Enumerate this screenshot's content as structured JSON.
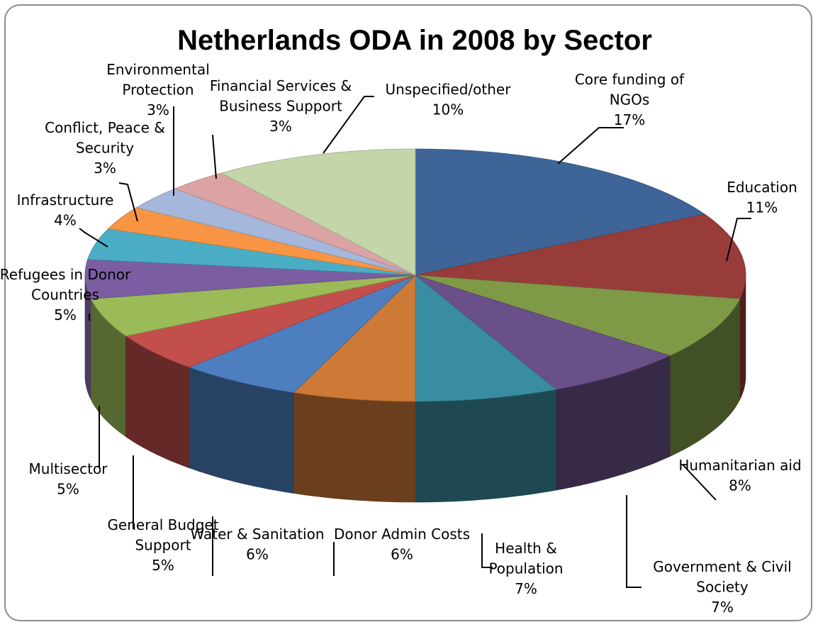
{
  "chart_data": {
    "type": "pie",
    "style": "3d-exploded-none",
    "title": "Netherlands ODA in 2008 by Sector",
    "legend": "none",
    "unit": "%",
    "slices": [
      {
        "label_lines": [
          "Core funding of",
          "NGOs"
        ],
        "value": 17,
        "value_text": "17%",
        "color": "#3f6598"
      },
      {
        "label_lines": [
          "Education"
        ],
        "value": 11,
        "value_text": "11%",
        "color": "#983c3a"
      },
      {
        "label_lines": [
          "Humanitarian aid"
        ],
        "value": 8,
        "value_text": "8%",
        "color": "#7f9a47"
      },
      {
        "label_lines": [
          "Government & Civil",
          "Society"
        ],
        "value": 7,
        "value_text": "7%",
        "color": "#6a5088"
      },
      {
        "label_lines": [
          "Health &",
          "Population"
        ],
        "value": 7,
        "value_text": "7%",
        "color": "#3a8da0"
      },
      {
        "label_lines": [
          "Donor Admin Costs"
        ],
        "value": 6,
        "value_text": "6%",
        "color": "#cd7a37"
      },
      {
        "label_lines": [
          "Water & Sanitation"
        ],
        "value": 6,
        "value_text": "6%",
        "color": "#4c7ec0"
      },
      {
        "label_lines": [
          "General Budget",
          "Support"
        ],
        "value": 5,
        "value_text": "5%",
        "color": "#c24f4c"
      },
      {
        "label_lines": [
          "Multisector"
        ],
        "value": 5,
        "value_text": "5%",
        "color": "#9bbb58"
      },
      {
        "label_lines": [
          "Refugees in Donor",
          "Countries"
        ],
        "value": 5,
        "value_text": "5%",
        "color": "#7b5ea2"
      },
      {
        "label_lines": [
          "Infrastructure"
        ],
        "value": 4,
        "value_text": "4%",
        "color": "#4aadc5"
      },
      {
        "label_lines": [
          "Conflict, Peace &",
          "Security"
        ],
        "value": 3,
        "value_text": "3%",
        "color": "#f79545"
      },
      {
        "label_lines": [
          "Environmental",
          "Protection"
        ],
        "value": 3,
        "value_text": "3%",
        "color": "#a5b7da"
      },
      {
        "label_lines": [
          "Financial Services &",
          "Business Support"
        ],
        "value": 3,
        "value_text": "3%",
        "color": "#dca3a4"
      },
      {
        "label_lines": [
          "Unspecified/other"
        ],
        "value": 10,
        "value_text": "10%",
        "color": "#c4d5a9"
      }
    ]
  }
}
